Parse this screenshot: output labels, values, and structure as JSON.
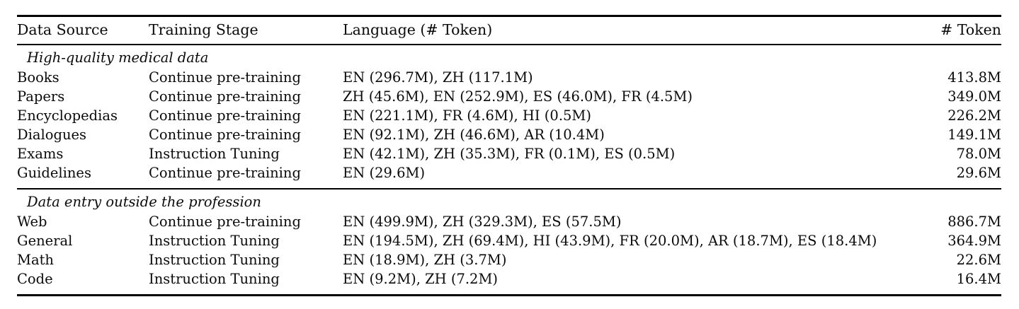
{
  "table": {
    "columns": [
      "Data Source",
      "Training Stage",
      "Language (# Token)",
      "# Token"
    ],
    "sections": [
      {
        "title": "High-quality medical data",
        "rows": [
          [
            "Books",
            "Continue pre-training",
            "EN (296.7M), ZH (117.1M)",
            "413.8M"
          ],
          [
            "Papers",
            "Continue pre-training",
            "ZH (45.6M), EN (252.9M), ES (46.0M), FR (4.5M)",
            "349.0M"
          ],
          [
            "Encyclopedias",
            "Continue pre-training",
            "EN (221.1M), FR (4.6M), HI (0.5M)",
            "226.2M"
          ],
          [
            "Dialogues",
            "Continue pre-training",
            "EN (92.1M), ZH (46.6M), AR (10.4M)",
            "149.1M"
          ],
          [
            "Exams",
            "Instruction Tuning",
            "EN (42.1M), ZH (35.3M), FR (0.1M), ES (0.5M)",
            "78.0M"
          ],
          [
            "Guidelines",
            "Continue pre-training",
            "EN (29.6M)",
            "29.6M"
          ]
        ]
      },
      {
        "title": "Data entry outside the profession",
        "rows": [
          [
            "Web",
            "Continue pre-training",
            "EN (499.9M), ZH (329.3M), ES (57.5M)",
            "886.7M"
          ],
          [
            "General",
            "Instruction Tuning",
            "EN (194.5M), ZH (69.4M), HI (43.9M), FR (20.0M), AR (18.7M), ES (18.4M)",
            "364.9M"
          ],
          [
            "Math",
            "Instruction Tuning",
            "EN (18.9M), ZH (3.7M)",
            "22.6M"
          ],
          [
            "Code",
            "Instruction Tuning",
            "EN (9.2M), ZH (7.2M)",
            "16.4M"
          ]
        ]
      }
    ],
    "colors": {
      "text": "#0a0a0a",
      "rule": "#000000",
      "background": "#ffffff"
    }
  }
}
